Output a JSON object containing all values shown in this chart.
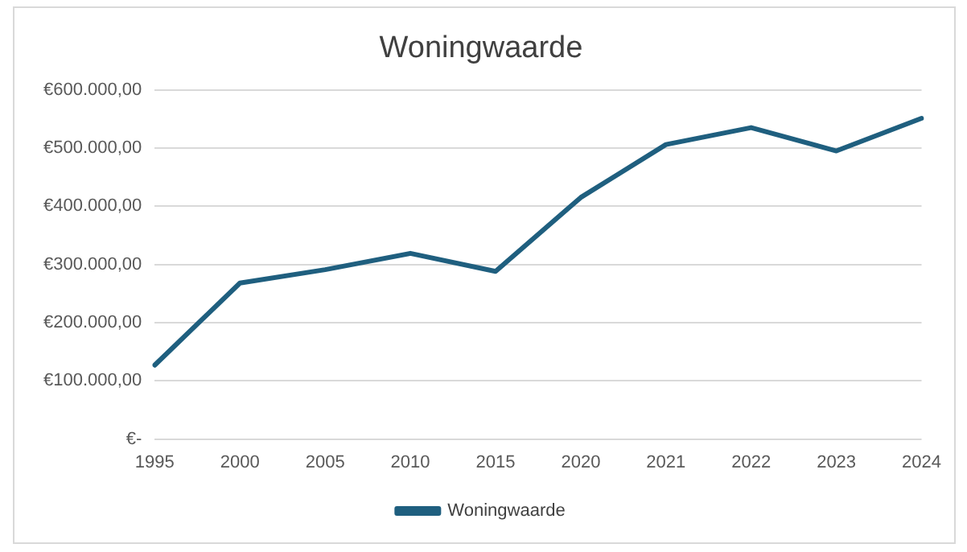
{
  "chart_data": {
    "type": "line",
    "title": "Woningwaarde",
    "categories": [
      "1995",
      "2000",
      "2005",
      "2010",
      "2015",
      "2020",
      "2021",
      "2022",
      "2023",
      "2024"
    ],
    "series": [
      {
        "name": "Woningwaarde",
        "color": "#1f5f7f",
        "values": [
          127000,
          268000,
          291000,
          319000,
          288000,
          415000,
          506000,
          535000,
          495000,
          551000
        ]
      }
    ],
    "ylim": [
      0,
      600000
    ],
    "yticks": [
      {
        "value": 0,
        "label": "€-"
      },
      {
        "value": 100000,
        "label": "€100.000,00"
      },
      {
        "value": 200000,
        "label": "€200.000,00"
      },
      {
        "value": 300000,
        "label": "€300.000,00"
      },
      {
        "value": 400000,
        "label": "€400.000,00"
      },
      {
        "value": 500000,
        "label": "€500.000,00"
      },
      {
        "value": 600000,
        "label": "€600.000,00"
      }
    ],
    "grid": "y",
    "legend": "bottom",
    "marker": "none",
    "line_style": "solid"
  }
}
